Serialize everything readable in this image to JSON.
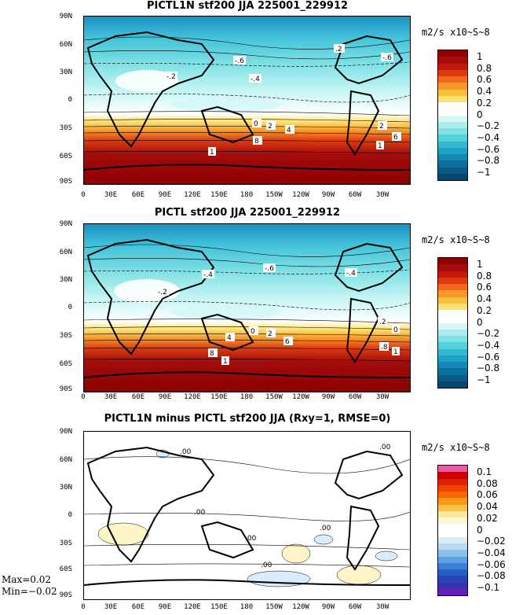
{
  "panels": [
    {
      "title": "PICTL1N stf200 JJA 225001_229912",
      "units": "m2/s x10~S~8",
      "colorbar_labels": [
        "1",
        "0.8",
        "0.6",
        "0.4",
        "0.2",
        "0",
        "−0.2",
        "−0.4",
        "−0.6",
        "−0.8",
        "−1"
      ],
      "colorbar_colors": [
        "#8b0000",
        "#a50d0d",
        "#c41a0a",
        "#dd3c10",
        "#f06a1a",
        "#f79a2b",
        "#fbbe3c",
        "#fde06a",
        "#ffffff",
        "#ffffff",
        "#d4f7f7",
        "#aaeeee",
        "#7fe2e6",
        "#55cfdb",
        "#35b9d2",
        "#1fa3c6",
        "#1489b5",
        "#0b6f9c",
        "#0a5a84",
        "#08456e"
      ],
      "contour_labels": [
        "-.6",
        "-.6",
        "-.2",
        "-.4",
        "0",
        "2",
        "4",
        "2",
        "6",
        "8",
        "1",
        "1",
        ".2"
      ]
    },
    {
      "title": "PICTL stf200 JJA 225001_229912",
      "units": "m2/s x10~S~8",
      "colorbar_labels": [
        "1",
        "0.8",
        "0.6",
        "0.4",
        "0.2",
        "0",
        "−0.2",
        "−0.4",
        "−0.6",
        "−0.8",
        "−1"
      ],
      "contour_labels": [
        "-.6",
        "-.4",
        "-.4",
        "-.2",
        "0",
        "2",
        "4",
        "6",
        "8",
        "1",
        "1",
        ".8",
        ".2",
        "0"
      ]
    },
    {
      "title": "PICTL1N minus PICTL stf200 JJA (Rxy=1, RMSE=0)",
      "units": "m2/s x10~S~8",
      "colorbar_labels": [
        "0.1",
        "0.08",
        "0.06",
        "0.04",
        "0.02",
        "0",
        "−0.02",
        "−0.04",
        "−0.06",
        "−0.08",
        "−0.1"
      ],
      "colorbar_colors": [
        "#e85aa8",
        "#cc0000",
        "#dd2200",
        "#ee4400",
        "#f56a00",
        "#fb9a1a",
        "#fdc040",
        "#fde79a",
        "#fff8c8",
        "#ffffff",
        "#ffffff",
        "#d8ecfb",
        "#b8daf5",
        "#8cc0ec",
        "#5d9fe0",
        "#3a7fd4",
        "#2260c6",
        "#2a44b8",
        "#3c2fae",
        "#6a1cb8"
      ],
      "contour_labels": [
        ".00",
        ".00",
        ".00",
        ".00",
        ".00",
        ".00"
      ],
      "max_label": "Max=0.02",
      "min_label": "Min=−0.02"
    }
  ],
  "lat_ticks": [
    "90N",
    "60N",
    "30N",
    "0",
    "30S",
    "60S",
    "90S"
  ],
  "lon_ticks": [
    "0",
    "30E",
    "60E",
    "90E",
    "120E",
    "150E",
    "180",
    "150W",
    "120W",
    "90W",
    "60W",
    "30W"
  ]
}
